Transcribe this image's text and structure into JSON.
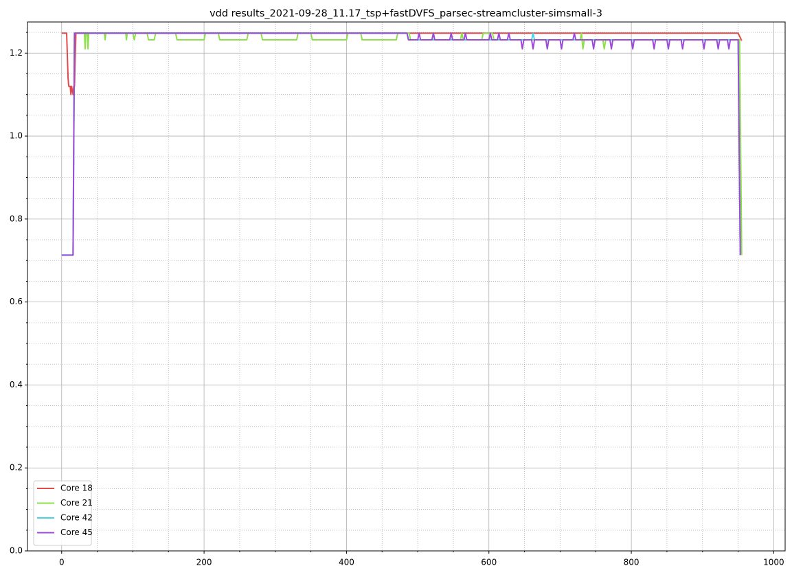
{
  "chart_data": {
    "type": "line",
    "title": "vdd results_2021-09-28_11.17_tsp+fastDVFS_parsec-streamcluster-simsmall-3",
    "xlim": [
      -48,
      1016
    ],
    "ylim": [
      0,
      1.275
    ],
    "xticks": [
      0,
      200,
      400,
      600,
      800,
      1000
    ],
    "yticks": [
      {
        "value": 0,
        "label": "0.0"
      },
      0.2,
      0.4,
      0.6,
      0.8,
      {
        "value": 1,
        "label": "1.0"
      },
      1.2
    ],
    "x_minor_ticks": [
      50,
      100,
      150,
      250,
      300,
      350,
      450,
      500,
      550,
      650,
      700,
      750,
      850,
      900,
      950
    ],
    "y_minor_ticks": [
      0.05,
      0.1,
      0.15,
      0.25,
      0.3,
      0.35,
      0.45,
      0.5,
      0.55,
      0.65,
      0.7,
      0.75,
      0.85,
      0.9,
      0.95,
      1.05,
      1.1,
      1.15,
      1.25
    ],
    "grid": true,
    "legend": "lower left",
    "series": [
      {
        "name": "Core 18",
        "color": "#e24a4a",
        "x": [
          0,
          7,
          9,
          10,
          12,
          13,
          14,
          16,
          17,
          18,
          20,
          950,
          955
        ],
        "values": [
          1.248,
          1.248,
          1.14,
          1.12,
          1.12,
          1.1,
          1.12,
          1.1,
          1.12,
          1.12,
          1.248,
          1.248,
          1.23
        ]
      },
      {
        "name": "Core 21",
        "color": "#8ee04a",
        "x": [
          0,
          16,
          18,
          32,
          33,
          34,
          36,
          37,
          38,
          60,
          61,
          62,
          90,
          91,
          92,
          100,
          102,
          104,
          120,
          122,
          130,
          132,
          160,
          162,
          200,
          202,
          220,
          222,
          260,
          262,
          280,
          282,
          330,
          332,
          350,
          352,
          400,
          402,
          420,
          422,
          470,
          472,
          488,
          490,
          520,
          522,
          524,
          560,
          562,
          564,
          590,
          592,
          605,
          607,
          728,
          730,
          732,
          734,
          760,
          762,
          764,
          952,
          955
        ],
        "values": [
          0.713,
          0.713,
          1.248,
          1.248,
          1.21,
          1.248,
          1.248,
          1.21,
          1.248,
          1.248,
          1.232,
          1.248,
          1.248,
          1.232,
          1.248,
          1.248,
          1.232,
          1.248,
          1.248,
          1.232,
          1.232,
          1.248,
          1.248,
          1.232,
          1.232,
          1.248,
          1.248,
          1.232,
          1.232,
          1.248,
          1.248,
          1.232,
          1.232,
          1.248,
          1.248,
          1.232,
          1.232,
          1.248,
          1.248,
          1.232,
          1.232,
          1.248,
          1.248,
          1.232,
          1.232,
          1.248,
          1.232,
          1.232,
          1.248,
          1.232,
          1.232,
          1.248,
          1.248,
          1.232,
          1.232,
          1.248,
          1.21,
          1.232,
          1.232,
          1.21,
          1.232,
          1.232,
          0.713
        ]
      },
      {
        "name": "Core 42",
        "color": "#4ad0e2",
        "x": [
          0,
          16,
          18,
          485,
          487,
          660,
          662,
          664,
          950,
          953
        ],
        "values": [
          0.713,
          0.713,
          1.248,
          1.248,
          1.232,
          1.232,
          1.248,
          1.232,
          1.232,
          0.713
        ]
      },
      {
        "name": "Core 45",
        "color": "#9b4ad8",
        "x": [
          0,
          16,
          18,
          485,
          487,
          500,
          502,
          504,
          520,
          522,
          524,
          545,
          547,
          549,
          565,
          567,
          569,
          600,
          602,
          604,
          612,
          614,
          616,
          626,
          628,
          630,
          645,
          647,
          649,
          660,
          662,
          664,
          680,
          682,
          684,
          700,
          702,
          704,
          718,
          720,
          722,
          745,
          747,
          749,
          770,
          772,
          774,
          800,
          802,
          804,
          830,
          832,
          834,
          850,
          852,
          854,
          870,
          872,
          874,
          900,
          902,
          904,
          920,
          922,
          924,
          935,
          937,
          939,
          950,
          953
        ],
        "values": [
          0.713,
          0.713,
          1.248,
          1.248,
          1.232,
          1.232,
          1.248,
          1.232,
          1.232,
          1.248,
          1.232,
          1.232,
          1.248,
          1.232,
          1.232,
          1.248,
          1.232,
          1.232,
          1.248,
          1.232,
          1.232,
          1.248,
          1.232,
          1.232,
          1.248,
          1.232,
          1.232,
          1.21,
          1.232,
          1.232,
          1.21,
          1.232,
          1.232,
          1.21,
          1.232,
          1.232,
          1.21,
          1.232,
          1.232,
          1.248,
          1.232,
          1.232,
          1.21,
          1.232,
          1.232,
          1.21,
          1.232,
          1.232,
          1.21,
          1.232,
          1.232,
          1.21,
          1.232,
          1.232,
          1.21,
          1.232,
          1.232,
          1.21,
          1.232,
          1.232,
          1.21,
          1.232,
          1.232,
          1.21,
          1.232,
          1.232,
          1.21,
          1.232,
          1.232,
          0.713
        ]
      }
    ]
  }
}
